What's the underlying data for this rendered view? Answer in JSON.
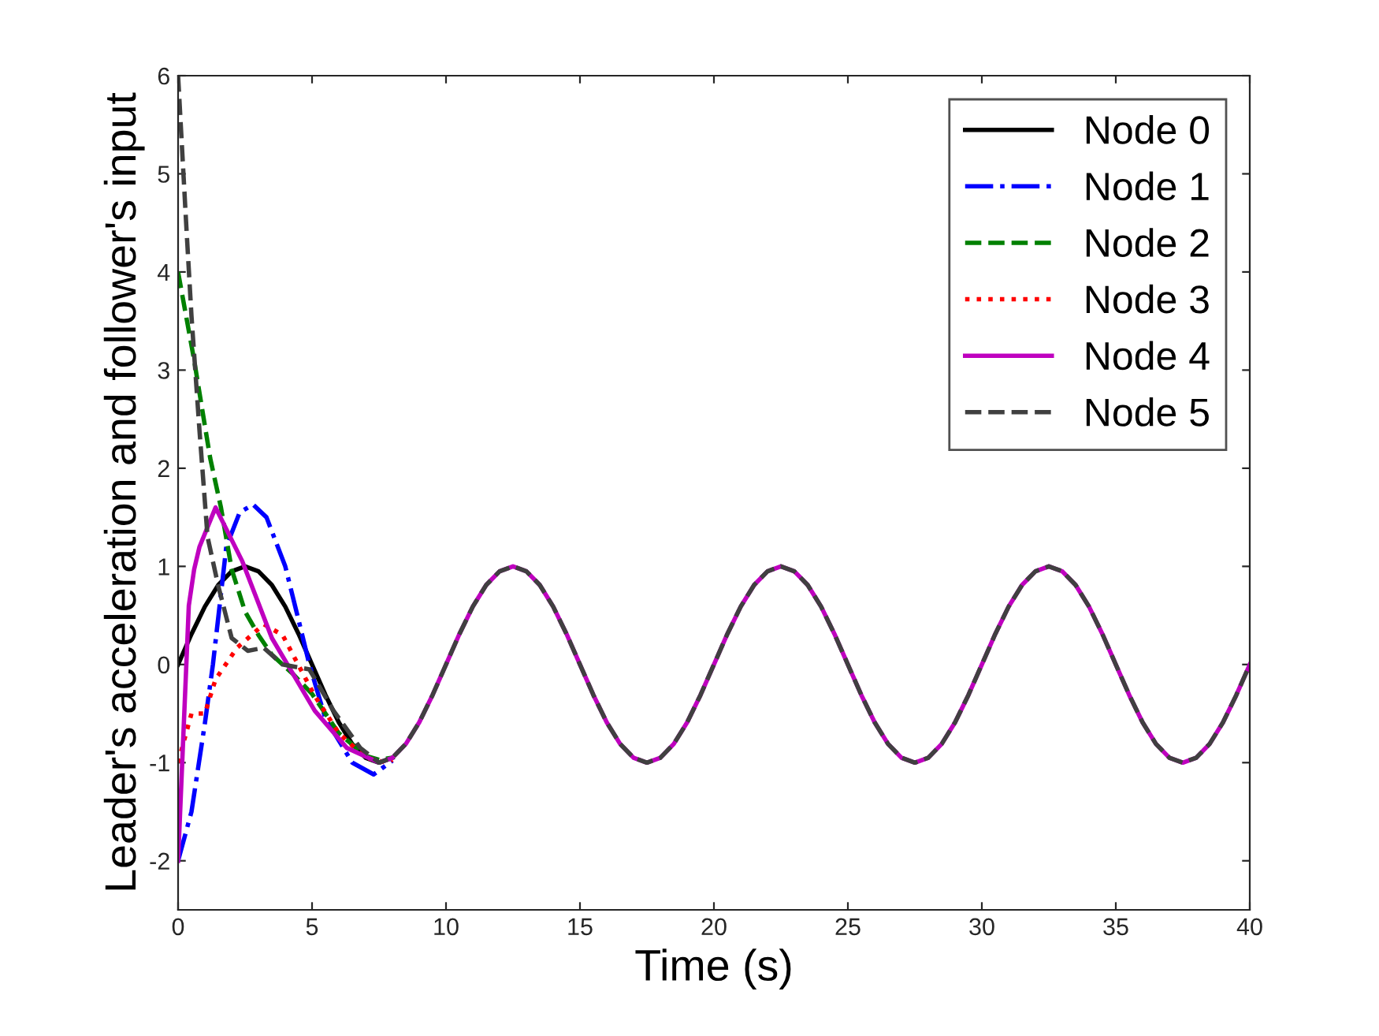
{
  "chart_data": {
    "type": "line",
    "xlabel": "Time (s)",
    "ylabel": "Leader's acceleration and follower's input",
    "xlim": [
      0,
      40
    ],
    "ylim": [
      -2.5,
      6
    ],
    "xticks": [
      0,
      5,
      10,
      15,
      20,
      25,
      30,
      35,
      40
    ],
    "yticks": [
      -2,
      -1,
      0,
      1,
      2,
      3,
      4,
      5,
      6
    ],
    "grid": false,
    "legend": "top right",
    "marker": "none",
    "series": [
      {
        "name": "Node 0",
        "color": "#000000",
        "line_style": "solid",
        "x": [
          0,
          0.5,
          1,
          1.5,
          2,
          2.5,
          3,
          3.5,
          4,
          4.5,
          5,
          5.5,
          6,
          6.5,
          7,
          7.5,
          8
        ],
        "values": [
          0,
          0.31,
          0.59,
          0.81,
          0.95,
          1,
          0.95,
          0.81,
          0.59,
          0.31,
          0,
          -0.31,
          -0.59,
          -0.81,
          -0.95,
          -1,
          -0.95
        ]
      },
      {
        "name": "Node 1",
        "color": "#0000ff",
        "line_style": "dashdot",
        "x": [
          0,
          0.5,
          1,
          1.3,
          1.8,
          2.3,
          2.8,
          3.3,
          4,
          4.5,
          4.9,
          5.5,
          6.5,
          7.3,
          8
        ],
        "values": [
          -2,
          -1.5,
          -0.6,
          0,
          1.2,
          1.55,
          1.63,
          1.5,
          1.0,
          0.45,
          0,
          -0.55,
          -1.0,
          -1.12,
          -0.98
        ]
      },
      {
        "name": "Node 2",
        "color": "#008000",
        "line_style": "dashed",
        "x": [
          0,
          0.6,
          1.2,
          1.6,
          2,
          2.5,
          3,
          3.5,
          4.3,
          5,
          6,
          7,
          7.5,
          8
        ],
        "values": [
          4,
          3.1,
          2.1,
          1.6,
          0.97,
          0.54,
          0.3,
          0.1,
          -0.1,
          -0.3,
          -0.7,
          -0.93,
          -0.97,
          -0.95
        ]
      },
      {
        "name": "Node 3",
        "color": "#ff0000",
        "line_style": "dotted",
        "x": [
          0,
          0.5,
          1,
          1.4,
          2.2,
          3.2,
          3.9,
          5.1,
          6,
          7,
          7.8,
          8
        ],
        "values": [
          -1,
          -0.5,
          -0.5,
          -0.15,
          0.17,
          0.41,
          0.3,
          -0.32,
          -0.7,
          -0.95,
          -1,
          -0.97
        ]
      },
      {
        "name": "Node 4",
        "color": "#bf00bf",
        "line_style": "solid",
        "x": [
          0,
          0.2,
          0.4,
          0.6,
          0.8,
          1.4,
          2.4,
          3.5,
          5.1,
          6.3,
          7.5,
          8,
          8.5,
          9,
          9.5,
          10,
          10.5,
          11,
          11.5,
          12,
          12.5,
          13,
          13.5,
          14,
          14.5,
          15,
          15.5,
          16,
          16.5,
          17,
          17.5,
          18,
          18.5,
          19,
          19.5,
          20,
          20.5,
          21,
          21.5,
          22,
          22.5,
          23,
          23.5,
          24,
          24.5,
          25,
          25.5,
          26,
          26.5,
          27,
          27.5,
          28,
          28.5,
          29,
          29.5,
          30,
          30.5,
          31,
          31.5,
          32,
          32.5,
          33,
          33.5,
          34,
          34.5,
          35,
          35.5,
          36,
          36.5,
          37,
          37.5,
          38,
          38.5,
          39,
          39.5,
          40
        ],
        "values": [
          -2,
          -0.7,
          0.6,
          0.97,
          1.2,
          1.6,
          1.05,
          0.27,
          -0.47,
          -0.85,
          -1,
          -0.95,
          -0.81,
          -0.59,
          -0.31,
          0,
          0.31,
          0.59,
          0.81,
          0.95,
          1,
          0.95,
          0.81,
          0.59,
          0.31,
          0,
          -0.31,
          -0.59,
          -0.81,
          -0.95,
          -1,
          -0.95,
          -0.81,
          -0.59,
          -0.31,
          0,
          0.31,
          0.59,
          0.81,
          0.95,
          1,
          0.95,
          0.81,
          0.59,
          0.31,
          0,
          -0.31,
          -0.59,
          -0.81,
          -0.95,
          -1,
          -0.95,
          -0.81,
          -0.59,
          -0.31,
          0,
          0.31,
          0.59,
          0.81,
          0.95,
          1,
          0.95,
          0.81,
          0.59,
          0.31,
          0,
          -0.31,
          -0.59,
          -0.81,
          -0.95,
          -1,
          -0.95,
          -0.81,
          -0.59,
          -0.31,
          0
        ]
      },
      {
        "name": "Node 5",
        "color": "#404040",
        "line_style": "dashed",
        "x": [
          0,
          0.3,
          0.5,
          0.8,
          1.1,
          1.5,
          2,
          2.6,
          3.2,
          3.9,
          4.9,
          5.8,
          6.8,
          7.5,
          8,
          8.5,
          9,
          9.5,
          10,
          10.5,
          11,
          11.5,
          12,
          12.5,
          13,
          13.5,
          14,
          14.5,
          15,
          15.5,
          16,
          16.5,
          17,
          17.5,
          18,
          18.5,
          19,
          19.5,
          20,
          20.5,
          21,
          21.5,
          22,
          22.5,
          23,
          23.5,
          24,
          24.5,
          25,
          25.5,
          26,
          26.5,
          27,
          27.5,
          28,
          28.5,
          29,
          29.5,
          30,
          30.5,
          31,
          31.5,
          32,
          32.5,
          33,
          33.5,
          34,
          34.5,
          35,
          35.5,
          36,
          36.5,
          37,
          37.5,
          38,
          38.5,
          39,
          39.5,
          40
        ],
        "values": [
          6,
          4.5,
          3.55,
          2.38,
          1.3,
          0.8,
          0.27,
          0.14,
          0.17,
          0,
          -0.05,
          -0.47,
          -0.85,
          -1,
          -0.95,
          -0.81,
          -0.59,
          -0.31,
          0,
          0.31,
          0.59,
          0.81,
          0.95,
          1,
          0.95,
          0.81,
          0.59,
          0.31,
          0,
          -0.31,
          -0.59,
          -0.81,
          -0.95,
          -1,
          -0.95,
          -0.81,
          -0.59,
          -0.31,
          0,
          0.31,
          0.59,
          0.81,
          0.95,
          1,
          0.95,
          0.81,
          0.59,
          0.31,
          0,
          -0.31,
          -0.59,
          -0.81,
          -0.95,
          -1,
          -0.95,
          -0.81,
          -0.59,
          -0.31,
          0,
          0.31,
          0.59,
          0.81,
          0.95,
          1,
          0.95,
          0.81,
          0.59,
          0.31,
          0,
          -0.31,
          -0.59,
          -0.81,
          -0.95,
          -1,
          -0.95,
          -0.81,
          -0.59,
          -0.31,
          0
        ]
      }
    ]
  }
}
